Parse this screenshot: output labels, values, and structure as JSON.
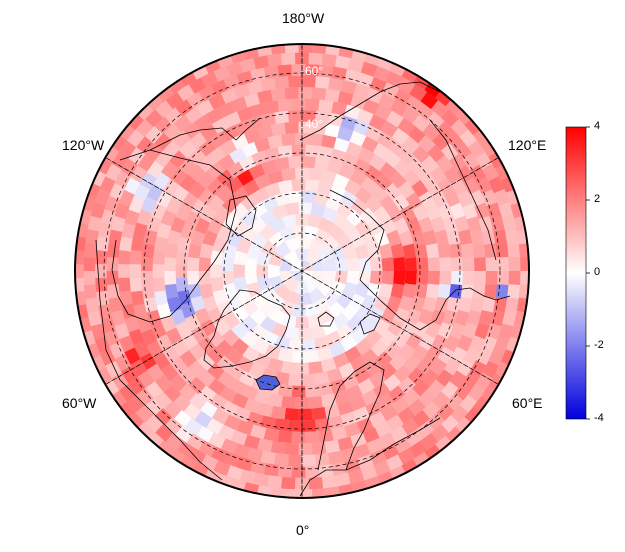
{
  "map": {
    "projection": "north-polar-stereographic",
    "grid_line_style": "dashed",
    "coastlines": true,
    "country_borders": true
  },
  "longitude_labels": {
    "top": "180°W",
    "upper_left": "120°W",
    "upper_right": "120°E",
    "lower_left": "60°W",
    "lower_right": "60°E",
    "bottom": "0°"
  },
  "latitude_labels": [
    "60°",
    "40°"
  ],
  "colorbar": {
    "ticks": [
      "4",
      "2",
      "0",
      "-2",
      "-4"
    ],
    "min": -4,
    "max": 4,
    "colors": {
      "high": "#ff0000",
      "mid": "#ffffff",
      "low": "#0000dd"
    }
  }
}
